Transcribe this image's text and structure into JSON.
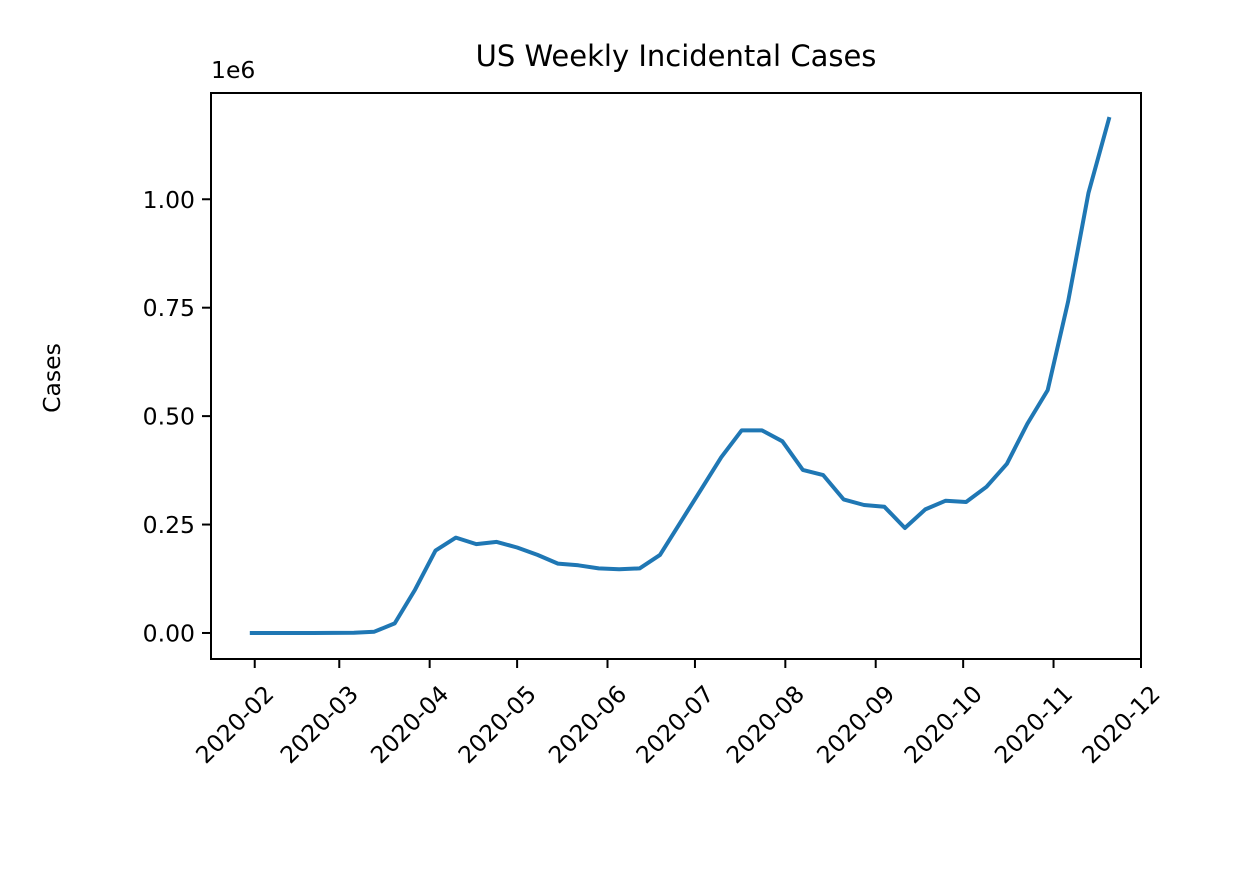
{
  "chart_data": {
    "type": "line",
    "title": "US Weekly Incidental Cases",
    "xlabel": "",
    "ylabel": "Cases",
    "y_offset_label": "1e6",
    "y_scale_factor": 1000000,
    "xlim": [
      "2020-01-17",
      "2020-12-01"
    ],
    "ylim": [
      -60000,
      1245000
    ],
    "grid": false,
    "x_ticks": [
      "2020-02",
      "2020-03",
      "2020-04",
      "2020-05",
      "2020-06",
      "2020-07",
      "2020-08",
      "2020-09",
      "2020-10",
      "2020-11",
      "2020-12"
    ],
    "x_tick_dates": [
      "2020-02-01",
      "2020-03-01",
      "2020-04-01",
      "2020-05-01",
      "2020-06-01",
      "2020-07-01",
      "2020-08-01",
      "2020-09-01",
      "2020-10-01",
      "2020-11-01",
      "2020-12-01"
    ],
    "y_ticks": [
      0,
      250000,
      500000,
      750000,
      1000000
    ],
    "y_tick_labels": [
      "0.00",
      "0.25",
      "0.50",
      "0.75",
      "1.00"
    ],
    "series": [
      {
        "color": "#1f77b4",
        "x": [
          "2020-01-31",
          "2020-02-07",
          "2020-02-14",
          "2020-02-21",
          "2020-02-28",
          "2020-03-06",
          "2020-03-13",
          "2020-03-20",
          "2020-03-27",
          "2020-04-03",
          "2020-04-10",
          "2020-04-17",
          "2020-04-24",
          "2020-05-01",
          "2020-05-08",
          "2020-05-15",
          "2020-05-22",
          "2020-05-29",
          "2020-06-05",
          "2020-06-12",
          "2020-06-19",
          "2020-06-26",
          "2020-07-03",
          "2020-07-10",
          "2020-07-17",
          "2020-07-24",
          "2020-07-31",
          "2020-08-07",
          "2020-08-14",
          "2020-08-21",
          "2020-08-28",
          "2020-09-04",
          "2020-09-11",
          "2020-09-18",
          "2020-09-25",
          "2020-10-02",
          "2020-10-09",
          "2020-10-16",
          "2020-10-23",
          "2020-10-30",
          "2020-11-06",
          "2020-11-13",
          "2020-11-20"
        ],
        "values": [
          0,
          0,
          0,
          0,
          100,
          500,
          3000,
          22000,
          100000,
          190000,
          220000,
          205000,
          210000,
          197000,
          180000,
          160000,
          156000,
          149000,
          147000,
          149000,
          180000,
          255000,
          330000,
          405000,
          467000,
          467000,
          442000,
          376000,
          364000,
          308000,
          295000,
          291000,
          242000,
          285000,
          305000,
          302000,
          337000,
          390000,
          482000,
          560000,
          764000,
          1015000,
          1185000
        ]
      }
    ]
  }
}
